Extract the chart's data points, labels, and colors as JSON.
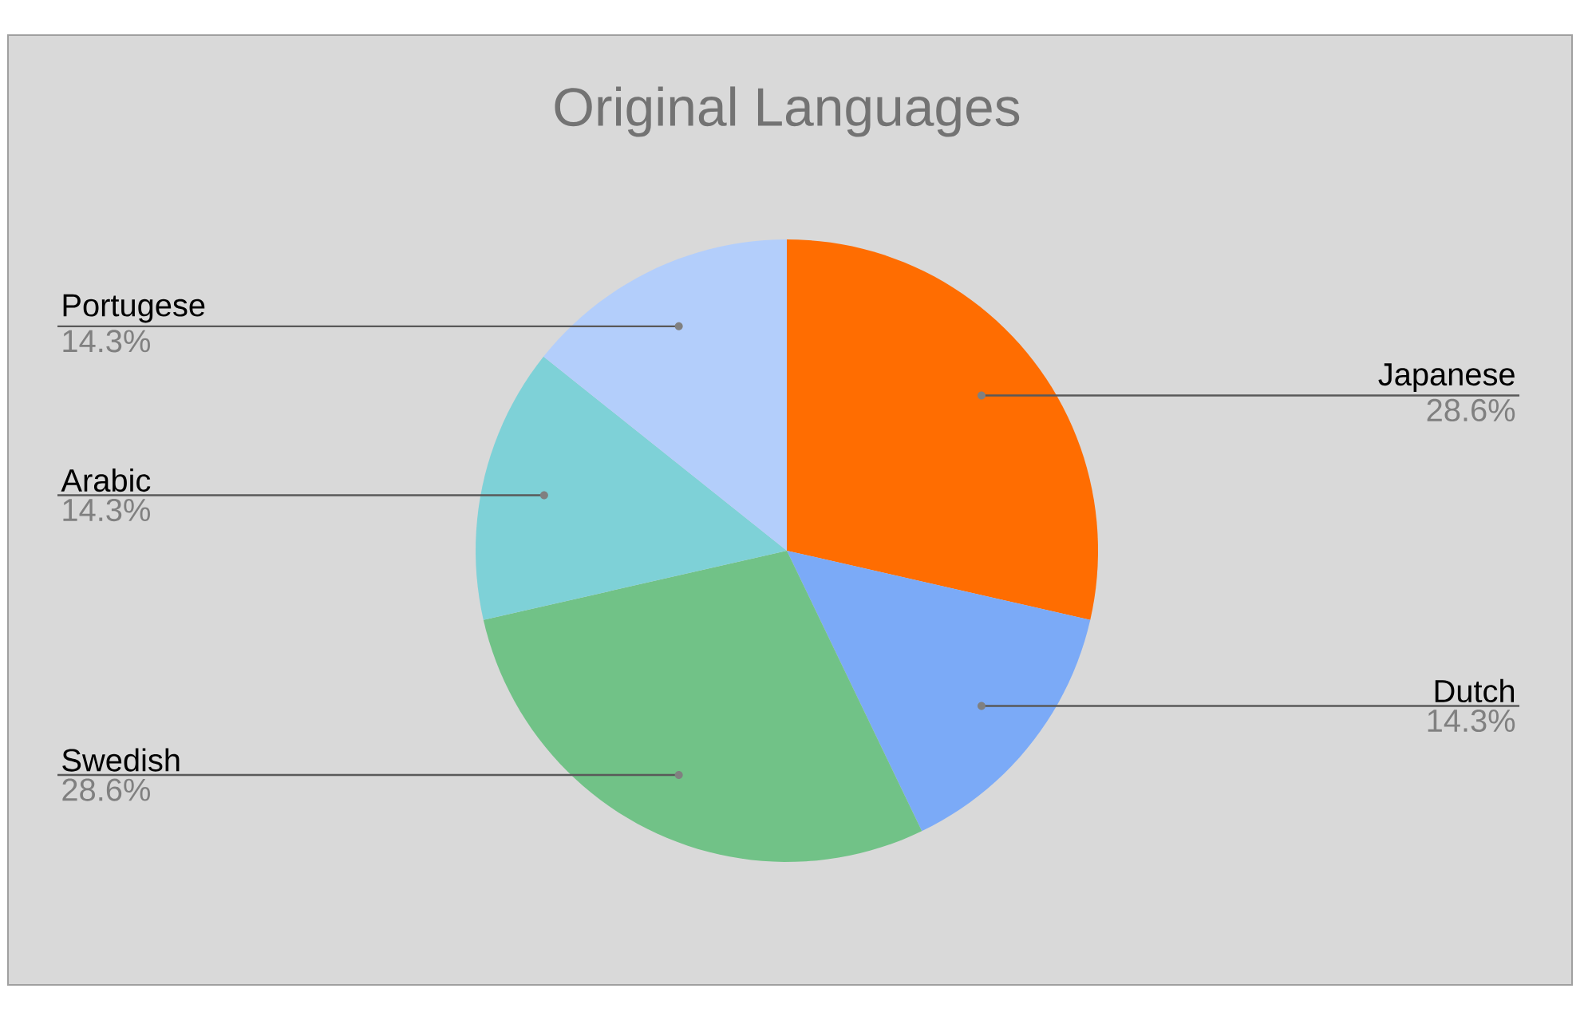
{
  "chart_data": {
    "type": "pie",
    "title": "Original Languages",
    "categories": [
      "Japanese",
      "Dutch",
      "Swedish",
      "Arabic",
      "Portugese"
    ],
    "values": [
      28.6,
      14.3,
      28.6,
      14.3,
      14.3
    ],
    "value_labels": [
      "28.6%",
      "14.3%",
      "28.6%",
      "14.3%",
      "14.3%"
    ],
    "colors": [
      "#ff6d01",
      "#7baaf7",
      "#71c287",
      "#7ed1d7",
      "#b3cefb"
    ]
  }
}
